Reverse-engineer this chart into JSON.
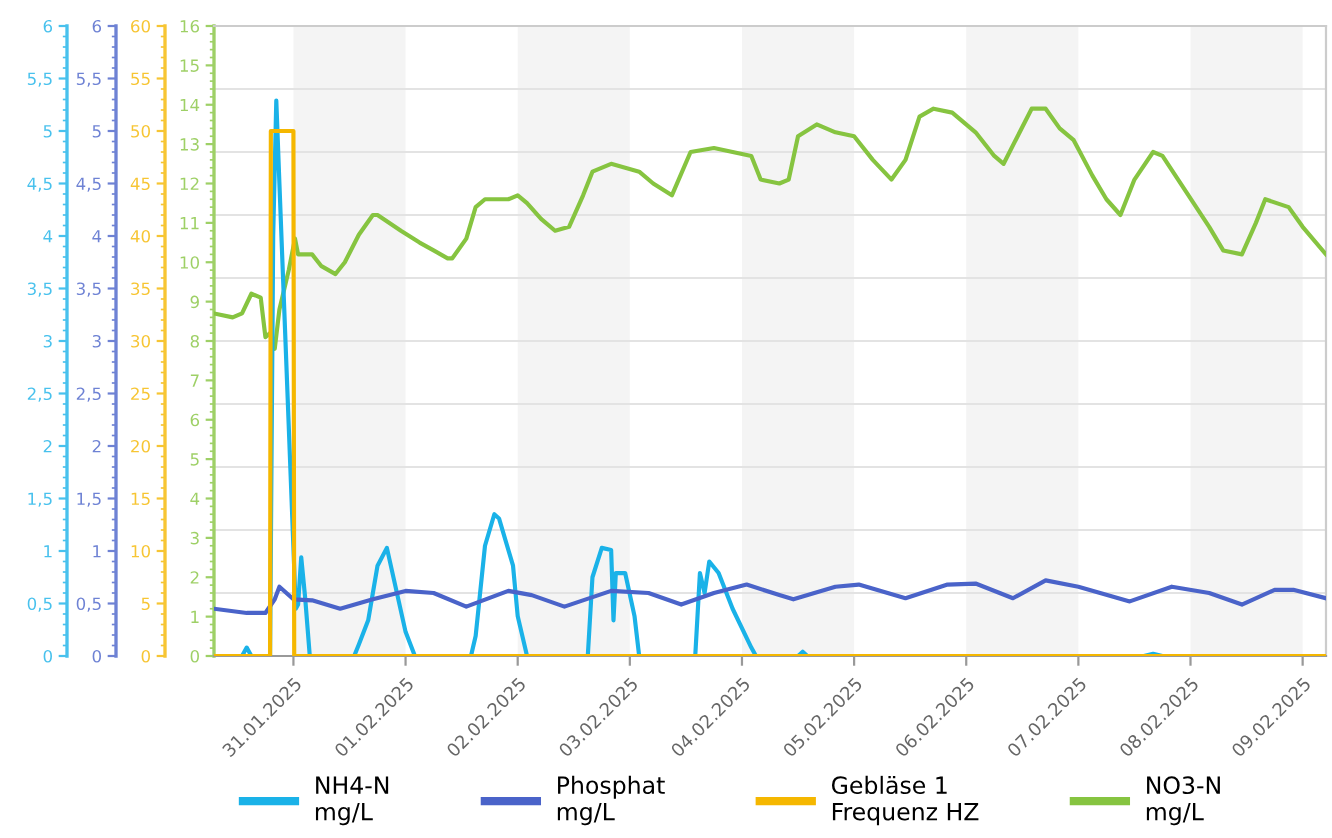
{
  "chart_data": {
    "type": "line",
    "legend": "bottom",
    "grid": "y",
    "marker": "none",
    "line_style": "solid",
    "xlim": [
      "2025-01-30T07:00",
      "2025-02-09T05:00"
    ],
    "xticks": [
      {
        "value": "2025-01-31",
        "label": "31.01.2025"
      },
      {
        "value": "2025-02-01",
        "label": "01.02.2025"
      },
      {
        "value": "2025-02-02",
        "label": "02.02.2025"
      },
      {
        "value": "2025-02-03",
        "label": "03.02.2025"
      },
      {
        "value": "2025-02-04",
        "label": "04.02.2025"
      },
      {
        "value": "2025-02-05",
        "label": "05.02.2025"
      },
      {
        "value": "2025-02-06",
        "label": "06.02.2025"
      },
      {
        "value": "2025-02-07",
        "label": "07.02.2025"
      },
      {
        "value": "2025-02-08",
        "label": "08.02.2025"
      },
      {
        "value": "2025-02-09",
        "label": "09.02.2025"
      }
    ],
    "y2lim": [
      0,
      6
    ],
    "y2ticks": [
      {
        "value": 0,
        "label": "0"
      },
      {
        "value": 0.5,
        "label": "0,5"
      },
      {
        "value": 1,
        "label": "1"
      },
      {
        "value": 1.5,
        "label": "1,5"
      },
      {
        "value": 2,
        "label": "2"
      },
      {
        "value": 2.5,
        "label": "2,5"
      },
      {
        "value": 3,
        "label": "3"
      },
      {
        "value": 3.5,
        "label": "3,5"
      },
      {
        "value": 4,
        "label": "4"
      },
      {
        "value": 4.5,
        "label": "4,5"
      },
      {
        "value": 5,
        "label": "5"
      },
      {
        "value": 5.5,
        "label": "5,5"
      },
      {
        "value": 6,
        "label": "6"
      }
    ],
    "y3lim": [
      0,
      60
    ],
    "y3ticks": [
      0,
      5,
      10,
      15,
      20,
      25,
      30,
      35,
      40,
      45,
      50,
      55,
      60
    ],
    "ylim": [
      0,
      16
    ],
    "yticks": [
      0,
      1,
      2,
      3,
      4,
      5,
      6,
      7,
      8,
      9,
      10,
      11,
      12,
      13,
      14,
      15,
      16
    ],
    "bands": [
      {
        "axis": "x",
        "from": "2025-01-31",
        "to": "2025-02-01",
        "color": "#f4f4f4"
      },
      {
        "axis": "x",
        "from": "2025-02-02",
        "to": "2025-02-03",
        "color": "#f4f4f4"
      },
      {
        "axis": "x",
        "from": "2025-02-04",
        "to": "2025-02-05",
        "color": "#f4f4f4"
      },
      {
        "axis": "x",
        "from": "2025-02-06",
        "to": "2025-02-07",
        "color": "#f4f4f4"
      },
      {
        "axis": "x",
        "from": "2025-02-08",
        "to": "2025-02-09",
        "color": "#f4f4f4"
      }
    ],
    "series": [
      {
        "name": "NH4-N\nmg/L",
        "color": "#1ab2e8",
        "axis": "y2",
        "x": [
          "2025-01-30T07:00",
          "2025-01-30T13:00",
          "2025-01-30T14:00",
          "2025-01-30T15:00",
          "2025-01-30T19:00",
          "2025-01-30T19:40",
          "2025-01-30T20:20",
          "2025-01-30T21:00",
          "2025-01-31T00:30",
          "2025-01-31T01:00",
          "2025-01-31T01:40",
          "2025-01-31T02:30",
          "2025-01-31T03:30",
          "2025-01-31T13:00",
          "2025-01-31T14:00",
          "2025-01-31T16:00",
          "2025-01-31T18:00",
          "2025-01-31T20:00",
          "2025-01-31T21:00",
          "2025-02-01T00:00",
          "2025-02-01T02:00",
          "2025-02-01T14:00",
          "2025-02-01T15:00",
          "2025-02-01T17:00",
          "2025-02-01T19:00",
          "2025-02-01T20:00",
          "2025-02-01T23:00",
          "2025-02-02T00:00",
          "2025-02-02T02:00",
          "2025-02-02T15:00",
          "2025-02-02T16:00",
          "2025-02-02T18:00",
          "2025-02-02T20:00",
          "2025-02-02T20:30",
          "2025-02-02T21:00",
          "2025-02-02T23:00",
          "2025-02-03T01:00",
          "2025-02-03T02:00",
          "2025-02-03T14:00",
          "2025-02-03T15:00",
          "2025-02-03T16:00",
          "2025-02-03T17:00",
          "2025-02-03T19:00",
          "2025-02-03T22:00",
          "2025-02-04T02:00",
          "2025-02-04T03:00",
          "2025-02-04T12:00",
          "2025-02-04T13:00",
          "2025-02-04T14:00",
          "2025-02-07T14:00",
          "2025-02-07T16:00",
          "2025-02-07T18:00",
          "2025-02-09T05:00"
        ],
        "values": [
          0,
          0,
          0.08,
          0,
          0,
          4,
          5.29,
          4.5,
          0.45,
          0.49,
          0.94,
          0.56,
          0,
          0,
          0.11,
          0.34,
          0.86,
          1.03,
          0.83,
          0.23,
          0,
          0,
          0.19,
          1.05,
          1.35,
          1.31,
          0.86,
          0.38,
          0,
          0,
          0.75,
          1.03,
          1.01,
          0.34,
          0.79,
          0.79,
          0.38,
          0,
          0,
          0.79,
          0.6,
          0.9,
          0.79,
          0.45,
          0.08,
          0,
          0,
          0.04,
          0,
          0,
          0.02,
          0,
          0
        ]
      },
      {
        "name": "Phosphat\nmg/L",
        "color": "#4a63c9",
        "axis": "y2",
        "x": [
          "2025-01-30T07:00",
          "2025-01-30T14:00",
          "2025-01-30T18:00",
          "2025-01-30T20:00",
          "2025-01-30T21:00",
          "2025-01-31T00:00",
          "2025-01-31T04:00",
          "2025-01-31T10:00",
          "2025-01-31T17:00",
          "2025-02-01T00:00",
          "2025-02-01T06:00",
          "2025-02-01T13:00",
          "2025-02-01T22:00",
          "2025-02-02T03:00",
          "2025-02-02T10:00",
          "2025-02-02T20:00",
          "2025-02-03T04:00",
          "2025-02-03T11:00",
          "2025-02-03T18:00",
          "2025-02-04T01:00",
          "2025-02-04T08:00",
          "2025-02-04T11:00",
          "2025-02-04T20:00",
          "2025-02-05T01:00",
          "2025-02-05T11:00",
          "2025-02-05T20:00",
          "2025-02-06T02:00",
          "2025-02-06T10:00",
          "2025-02-06T17:00",
          "2025-02-07T00:00",
          "2025-02-07T11:00",
          "2025-02-07T20:00",
          "2025-02-08T04:00",
          "2025-02-08T11:00",
          "2025-02-08T18:00",
          "2025-02-08T22:00",
          "2025-02-09T05:00"
        ],
        "values": [
          0.45,
          0.41,
          0.41,
          0.54,
          0.66,
          0.54,
          0.53,
          0.45,
          0.54,
          0.62,
          0.6,
          0.47,
          0.62,
          0.58,
          0.47,
          0.62,
          0.6,
          0.49,
          0.6,
          0.68,
          0.58,
          0.54,
          0.66,
          0.68,
          0.55,
          0.68,
          0.69,
          0.55,
          0.72,
          0.66,
          0.52,
          0.66,
          0.6,
          0.49,
          0.63,
          0.63,
          0.55
        ]
      },
      {
        "name": "Gebläse 1\nFrequenz HZ",
        "color": "#f5b700",
        "axis": "y3",
        "x": [
          "2025-01-30T07:00",
          "2025-01-30T19:00",
          "2025-01-30T19:10",
          "2025-01-31T00:00",
          "2025-01-31T00:10",
          "2025-02-09T05:00"
        ],
        "values": [
          0,
          0,
          50,
          50,
          0,
          0
        ]
      },
      {
        "name": "NO3-N\nmg/L",
        "color": "#86c440",
        "axis": "y",
        "x": [
          "2025-01-30T07:00",
          "2025-01-30T11:00",
          "2025-01-30T13:00",
          "2025-01-30T15:00",
          "2025-01-30T17:00",
          "2025-01-30T18:00",
          "2025-01-30T19:00",
          "2025-01-30T20:00",
          "2025-01-30T21:00",
          "2025-01-30T23:00",
          "2025-01-31T00:20",
          "2025-01-31T01:00",
          "2025-01-31T04:00",
          "2025-01-31T06:00",
          "2025-01-31T09:00",
          "2025-01-31T11:00",
          "2025-01-31T14:00",
          "2025-01-31T17:00",
          "2025-01-31T18:00",
          "2025-01-31T23:00",
          "2025-02-01T03:00",
          "2025-02-01T06:00",
          "2025-02-01T09:00",
          "2025-02-01T10:00",
          "2025-02-01T13:00",
          "2025-02-01T15:00",
          "2025-02-01T17:00",
          "2025-02-01T22:00",
          "2025-02-02T00:00",
          "2025-02-02T02:00",
          "2025-02-02T05:00",
          "2025-02-02T08:00",
          "2025-02-02T11:00",
          "2025-02-02T14:00",
          "2025-02-02T16:00",
          "2025-02-02T20:00",
          "2025-02-03T02:00",
          "2025-02-03T05:00",
          "2025-02-03T09:00",
          "2025-02-03T13:00",
          "2025-02-03T18:00",
          "2025-02-03T22:00",
          "2025-02-04T02:00",
          "2025-02-04T04:00",
          "2025-02-04T08:00",
          "2025-02-04T10:00",
          "2025-02-04T12:00",
          "2025-02-04T16:00",
          "2025-02-04T20:00",
          "2025-02-05T00:00",
          "2025-02-05T04:00",
          "2025-02-05T08:00",
          "2025-02-05T11:00",
          "2025-02-05T14:00",
          "2025-02-05T17:00",
          "2025-02-05T21:00",
          "2025-02-06T02:00",
          "2025-02-06T06:00",
          "2025-02-06T08:00",
          "2025-02-06T11:00",
          "2025-02-06T14:00",
          "2025-02-06T17:00",
          "2025-02-06T20:00",
          "2025-02-06T23:00",
          "2025-02-07T03:00",
          "2025-02-07T06:00",
          "2025-02-07T09:00",
          "2025-02-07T12:00",
          "2025-02-07T16:00",
          "2025-02-07T18:00",
          "2025-02-07T23:00",
          "2025-02-08T04:00",
          "2025-02-08T07:00",
          "2025-02-08T11:00",
          "2025-02-08T14:00",
          "2025-02-08T16:00",
          "2025-02-08T21:00",
          "2025-02-09T00:00",
          "2025-02-09T05:00"
        ],
        "values": [
          8.7,
          8.6,
          8.7,
          9.2,
          9.1,
          8.1,
          8.2,
          7.8,
          8.8,
          9.8,
          10.6,
          10.2,
          10.2,
          9.9,
          9.7,
          10.0,
          10.7,
          11.2,
          11.2,
          10.8,
          10.5,
          10.3,
          10.1,
          10.1,
          10.6,
          11.4,
          11.6,
          11.6,
          11.7,
          11.5,
          11.1,
          10.8,
          10.9,
          11.7,
          12.3,
          12.5,
          12.3,
          12.0,
          11.7,
          12.8,
          12.9,
          12.8,
          12.7,
          12.1,
          12.0,
          12.1,
          13.2,
          13.5,
          13.3,
          13.2,
          12.6,
          12.1,
          12.6,
          13.7,
          13.9,
          13.8,
          13.3,
          12.7,
          12.5,
          13.2,
          13.9,
          13.9,
          13.4,
          13.1,
          12.2,
          11.6,
          11.2,
          12.1,
          12.8,
          12.7,
          11.8,
          10.9,
          10.3,
          10.2,
          11.0,
          11.6,
          11.4,
          10.9,
          10.2
        ]
      }
    ]
  }
}
